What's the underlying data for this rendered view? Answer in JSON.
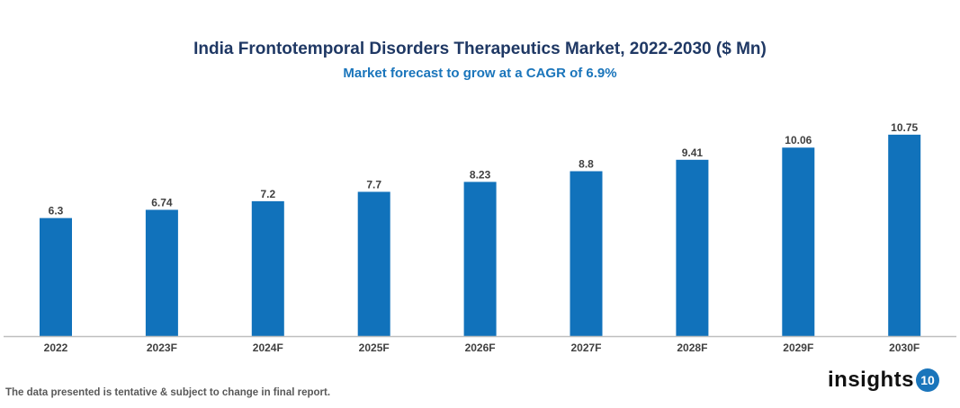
{
  "chart_data": {
    "type": "bar",
    "title": "India Frontotemporal Disorders Therapeutics Market, 2022-2030 ($ Mn)",
    "subtitle": "Market forecast to grow at a CAGR of 6.9%",
    "categories": [
      "2022",
      "2023F",
      "2024F",
      "2025F",
      "2026F",
      "2027F",
      "2028F",
      "2029F",
      "2030F"
    ],
    "values": [
      6.3,
      6.74,
      7.2,
      7.7,
      8.23,
      8.8,
      9.41,
      10.06,
      10.75
    ],
    "data_labels": [
      "6.3",
      "6.74",
      "7.2",
      "7.7",
      "8.23",
      "8.8",
      "9.41",
      "10.06",
      "10.75"
    ],
    "xlabel": "",
    "ylabel": "",
    "ylim": [
      0,
      12
    ],
    "grid": false,
    "legend": "none",
    "bar_color": "#1172bb"
  },
  "footnote": "The data presented is tentative & subject to change in final report.",
  "logo": {
    "text": "insights",
    "badge": "10",
    "color": "#1a75bb"
  }
}
